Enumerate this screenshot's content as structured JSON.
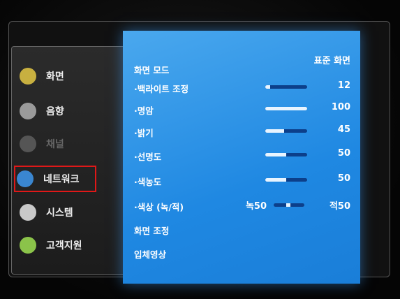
{
  "sidebar": {
    "items": [
      "화면",
      "음향",
      "채널",
      "네트워크",
      "시스템",
      "고객지원"
    ]
  },
  "picture_menu": {
    "mode": {
      "label": "화면 모드",
      "value": "표준 화면"
    },
    "settings": [
      {
        "label": "·백라이트 조정",
        "value": 12
      },
      {
        "label": "·명암",
        "value": 100
      },
      {
        "label": "·밝기",
        "value": 45
      },
      {
        "label": "·선명도",
        "value": 50
      },
      {
        "label": "·색농도",
        "value": 50
      }
    ],
    "tint": {
      "label": "·색상 (녹/적)",
      "left": "녹50",
      "right": "적50"
    },
    "items": [
      "화면 조정",
      "입체영상"
    ]
  }
}
